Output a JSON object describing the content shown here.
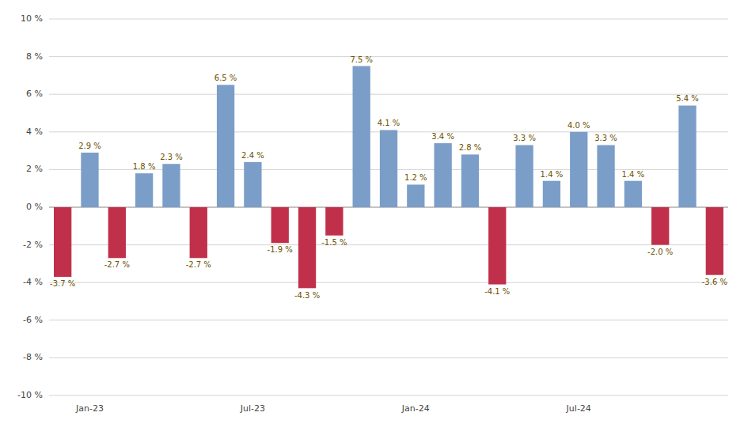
{
  "chart_data": {
    "type": "bar",
    "categories": [
      null,
      "Jan-23",
      null,
      null,
      null,
      null,
      null,
      "Jul-23",
      null,
      null,
      null,
      null,
      null,
      "Jan-24",
      null,
      null,
      null,
      null,
      null,
      "Jul-24",
      null,
      null,
      null,
      null,
      null
    ],
    "values": [
      -3.7,
      2.9,
      -2.7,
      1.8,
      2.3,
      -2.7,
      6.5,
      2.4,
      -1.9,
      -4.3,
      -1.5,
      7.5,
      4.1,
      1.2,
      3.4,
      2.8,
      -4.1,
      3.3,
      1.4,
      4.0,
      3.3,
      1.4,
      -2.0,
      5.4,
      -3.6
    ],
    "value_labels": [
      "-3.7 %",
      "2.9 %",
      "-2.7 %",
      "1.8 %",
      "2.3 %",
      "-2.7 %",
      "6.5 %",
      "2.4 %",
      "-1.9 %",
      "-4.3 %",
      "-1.5 %",
      "7.5 %",
      "4.1 %",
      "1.2 %",
      "3.4 %",
      "2.8 %",
      "-4.1 %",
      "3.3 %",
      "1.4 %",
      "4.0 %",
      "3.3 %",
      "1.4 %",
      "-2.0 %",
      "5.4 %",
      "-3.6 %"
    ],
    "colors": [
      "#C0304A",
      "#7B9EC8",
      "#C0304A",
      "#7B9EC8",
      "#7B9EC8",
      "#C0304A",
      "#7B9EC8",
      "#7B9EC8",
      "#C0304A",
      "#C0304A",
      "#C0304A",
      "#7B9EC8",
      "#7B9EC8",
      "#7B9EC8",
      "#7B9EC8",
      "#7B9EC8",
      "#C0304A",
      "#7B9EC8",
      "#7B9EC8",
      "#7B9EC8",
      "#7B9EC8",
      "#7B9EC8",
      "#C0304A",
      "#7B9EC8",
      "#C0304A"
    ],
    "ylim": [
      -10,
      10
    ],
    "yticks": [
      {
        "value": -10,
        "label": "-10 %"
      },
      {
        "value": -8,
        "label": "-8 %"
      },
      {
        "value": -6,
        "label": "-6 %"
      },
      {
        "value": -4,
        "label": "-4 %"
      },
      {
        "value": -2,
        "label": "-2 %"
      },
      {
        "value": 0,
        "label": "0 %"
      },
      {
        "value": 2,
        "label": "2 %"
      },
      {
        "value": 4,
        "label": "4 %"
      },
      {
        "value": 6,
        "label": "6 %"
      },
      {
        "value": 8,
        "label": "8 %"
      },
      {
        "value": 10,
        "label": "10 %"
      }
    ],
    "grid": true,
    "data_labels": true
  }
}
